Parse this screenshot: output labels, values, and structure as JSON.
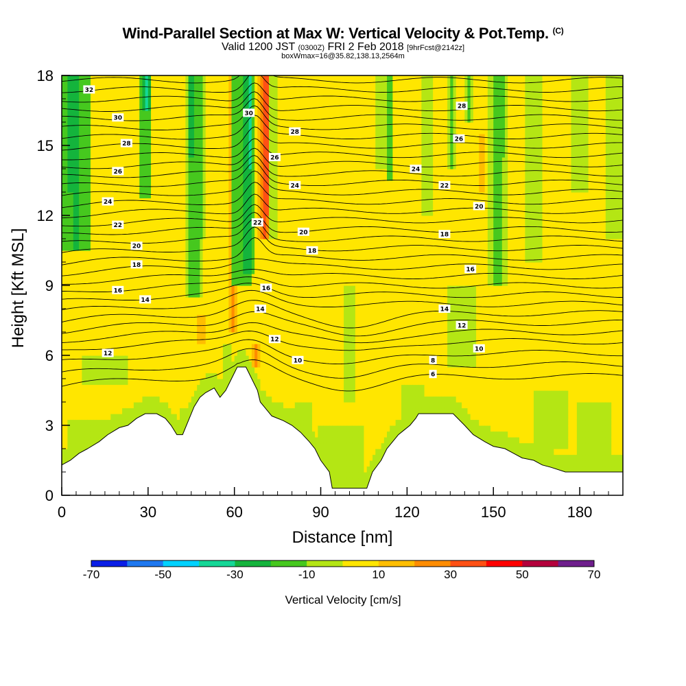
{
  "header": {
    "title": "Wind-Parallel Section at Max W: Vertical Velocity & Pot.Temp.",
    "title_suffix": "(C)",
    "valid_prefix": "Valid 1200 JST",
    "valid_utc": "(0300Z)",
    "valid_date": "FRI 2 Feb 2018",
    "forecast": "[9hrFcst@2142z]",
    "box_info": "boxWmax=16@35.82,138.13,2564m"
  },
  "chart_data": {
    "type": "heatmap",
    "xlabel": "Distance [nm]",
    "ylabel": "Height [Kft MSL]",
    "xlim": [
      0,
      195
    ],
    "ylim": [
      0,
      18
    ],
    "x_ticks": [
      "0",
      "30",
      "60",
      "90",
      "120",
      "150",
      "180"
    ],
    "y_ticks": [
      "0",
      "3",
      "6",
      "9",
      "12",
      "15",
      "18"
    ],
    "colorbar": {
      "label": "Vertical Velocity [cm/s]",
      "tick_labels": [
        "-70",
        "-50",
        "-30",
        "-10",
        "10",
        "30",
        "50",
        "70"
      ],
      "bounds": [
        -70,
        -60,
        -50,
        -40,
        -30,
        -20,
        -10,
        0,
        10,
        20,
        30,
        40,
        50,
        60,
        70
      ],
      "colors": [
        "#0a1ee6",
        "#1e78f0",
        "#00d2ff",
        "#14d796",
        "#14b43c",
        "#46c81e",
        "#b4e614",
        "#ffe600",
        "#ffbe00",
        "#ff8c00",
        "#ff5014",
        "#ff0000",
        "#b4003c",
        "#6e1e8c"
      ]
    },
    "terrain": [
      [
        0,
        1.3
      ],
      [
        3,
        1.5
      ],
      [
        6,
        1.8
      ],
      [
        9,
        2.0
      ],
      [
        13,
        2.3
      ],
      [
        16,
        2.6
      ],
      [
        20,
        2.9
      ],
      [
        23,
        3.0
      ],
      [
        26,
        3.3
      ],
      [
        29,
        3.5
      ],
      [
        33,
        3.5
      ],
      [
        36,
        3.3
      ],
      [
        38,
        3.0
      ],
      [
        40,
        2.6
      ],
      [
        42,
        2.6
      ],
      [
        44,
        3.2
      ],
      [
        46,
        3.8
      ],
      [
        48,
        4.2
      ],
      [
        50,
        4.4
      ],
      [
        53,
        4.6
      ],
      [
        55,
        4.2
      ],
      [
        57,
        4.5
      ],
      [
        59,
        5.0
      ],
      [
        61,
        5.5
      ],
      [
        64,
        5.5
      ],
      [
        66,
        5.0
      ],
      [
        68,
        4.5
      ],
      [
        69,
        4.0
      ],
      [
        71,
        3.7
      ],
      [
        73,
        3.4
      ],
      [
        77,
        3.2
      ],
      [
        80,
        3.0
      ],
      [
        83,
        2.7
      ],
      [
        86,
        2.3
      ],
      [
        88,
        2.0
      ],
      [
        90,
        1.5
      ],
      [
        93,
        1.0
      ],
      [
        94,
        0.3
      ],
      [
        100,
        0.3
      ],
      [
        106,
        0.3
      ],
      [
        108,
        1.0
      ],
      [
        111,
        1.5
      ],
      [
        113,
        2.0
      ],
      [
        115,
        2.3
      ],
      [
        117,
        2.6
      ],
      [
        119,
        2.8
      ],
      [
        121,
        3.0
      ],
      [
        123,
        3.3
      ],
      [
        124,
        3.5
      ],
      [
        136,
        3.5
      ],
      [
        140,
        3.0
      ],
      [
        143,
        2.6
      ],
      [
        147,
        2.3
      ],
      [
        150,
        2.1
      ],
      [
        154,
        2.0
      ],
      [
        157,
        1.8
      ],
      [
        160,
        1.6
      ],
      [
        164,
        1.5
      ],
      [
        167,
        1.3
      ],
      [
        170,
        1.2
      ],
      [
        175,
        1.0
      ],
      [
        180,
        1.0
      ],
      [
        190,
        1.0
      ],
      [
        195,
        1.0
      ]
    ],
    "theta_levels": [
      {
        "label": "6",
        "y": 5.1
      },
      {
        "label": "6",
        "y": 5.6
      },
      {
        "label": "8",
        "y": 6.1
      },
      {
        "label": "10",
        "y": 6.6
      },
      {
        "label": "12",
        "y": 7.0
      },
      {
        "label": "12",
        "y": 7.4
      },
      {
        "label": "14",
        "y": 7.8
      },
      {
        "label": "14",
        "y": 8.2
      },
      {
        "label": "16",
        "y": 8.6
      },
      {
        "label": "16",
        "y": 9.0
      },
      {
        "label": "16",
        "y": 9.4
      },
      {
        "label": "18",
        "y": 9.8
      },
      {
        "label": "18",
        "y": 10.2
      },
      {
        "label": "20",
        "y": 10.6
      },
      {
        "label": "20",
        "y": 11.0
      },
      {
        "label": "22",
        "y": 11.4
      },
      {
        "label": "22",
        "y": 11.8
      },
      {
        "label": "22",
        "y": 12.2
      },
      {
        "label": "24",
        "y": 12.6
      },
      {
        "label": "24",
        "y": 13.0
      },
      {
        "label": "24",
        "y": 13.4
      },
      {
        "label": "26",
        "y": 13.8
      },
      {
        "label": "26",
        "y": 14.2
      },
      {
        "label": "26",
        "y": 14.6
      },
      {
        "label": "26",
        "y": 15.0
      },
      {
        "label": "28",
        "y": 15.4
      },
      {
        "label": "28",
        "y": 15.8
      },
      {
        "label": "30",
        "y": 16.2
      },
      {
        "label": "30",
        "y": 16.6
      },
      {
        "label": "30",
        "y": 17.0
      },
      {
        "label": "32",
        "y": 17.4
      },
      {
        "label": "32",
        "y": 17.8
      }
    ],
    "contour_labels": [
      {
        "text": "32",
        "x": 9.5,
        "y": 17.4
      },
      {
        "text": "30",
        "x": 19.5,
        "y": 16.2
      },
      {
        "text": "28",
        "x": 22.5,
        "y": 15.1
      },
      {
        "text": "26",
        "x": 19.5,
        "y": 13.9
      },
      {
        "text": "24",
        "x": 16,
        "y": 12.6
      },
      {
        "text": "22",
        "x": 19.5,
        "y": 11.6
      },
      {
        "text": "20",
        "x": 26,
        "y": 10.7
      },
      {
        "text": "18",
        "x": 26,
        "y": 9.9
      },
      {
        "text": "16",
        "x": 19.5,
        "y": 8.8
      },
      {
        "text": "14",
        "x": 29,
        "y": 8.4
      },
      {
        "text": "12",
        "x": 16,
        "y": 6.1
      },
      {
        "text": "30",
        "x": 65,
        "y": 16.4
      },
      {
        "text": "28",
        "x": 81,
        "y": 15.6
      },
      {
        "text": "26",
        "x": 74,
        "y": 14.5
      },
      {
        "text": "24",
        "x": 81,
        "y": 13.3
      },
      {
        "text": "22",
        "x": 68,
        "y": 11.7
      },
      {
        "text": "20",
        "x": 84,
        "y": 11.3
      },
      {
        "text": "18",
        "x": 87,
        "y": 10.5
      },
      {
        "text": "16",
        "x": 71,
        "y": 8.9
      },
      {
        "text": "14",
        "x": 69,
        "y": 8.0
      },
      {
        "text": "12",
        "x": 74,
        "y": 6.7
      },
      {
        "text": "10",
        "x": 82,
        "y": 5.8
      },
      {
        "text": "8",
        "x": 129,
        "y": 5.8
      },
      {
        "text": "6",
        "x": 129,
        "y": 5.2
      },
      {
        "text": "28",
        "x": 139,
        "y": 16.7
      },
      {
        "text": "26",
        "x": 138,
        "y": 15.3
      },
      {
        "text": "24",
        "x": 123,
        "y": 14.0
      },
      {
        "text": "22",
        "x": 133,
        "y": 13.3
      },
      {
        "text": "20",
        "x": 145,
        "y": 12.4
      },
      {
        "text": "18",
        "x": 133,
        "y": 11.2
      },
      {
        "text": "16",
        "x": 142,
        "y": 9.7
      },
      {
        "text": "14",
        "x": 133,
        "y": 8.0
      },
      {
        "text": "12",
        "x": 139,
        "y": 7.3
      },
      {
        "text": "10",
        "x": 145,
        "y": 6.3
      }
    ],
    "w_features": [
      {
        "x": 5,
        "y0": 10.5,
        "y1": 18,
        "hw": 5,
        "w": -22
      },
      {
        "x": 4,
        "y0": 13,
        "y1": 18,
        "hw": 2.5,
        "w": -32
      },
      {
        "x": 29,
        "y0": 12.8,
        "y1": 18,
        "hw": 2.5,
        "w": -20
      },
      {
        "x": 29.5,
        "y0": 16.5,
        "y1": 18,
        "hw": 1.2,
        "w": -38
      },
      {
        "x": 46,
        "y0": 8.5,
        "y1": 18,
        "hw": 3,
        "w": -15
      },
      {
        "x": 45,
        "y0": 14.5,
        "y1": 18,
        "hw": 1.5,
        "w": -28
      },
      {
        "x": 48.5,
        "y0": 11.0,
        "y1": 18,
        "hw": 1.8,
        "w": -12
      },
      {
        "x": 39.5,
        "y0": 12,
        "y1": 18,
        "hw": 1.5,
        "w": 8
      },
      {
        "x": 59.5,
        "y0": 7,
        "y1": 18,
        "hw": 1.5,
        "w": 20
      },
      {
        "x": 62.5,
        "y0": 9,
        "y1": 18,
        "hw": 4,
        "w": -18
      },
      {
        "x": 64.5,
        "y0": 9.5,
        "y1": 18,
        "hw": 3,
        "w": -28
      },
      {
        "x": 65.5,
        "y0": 14,
        "y1": 18,
        "hw": 1,
        "w": -38
      },
      {
        "x": 70.5,
        "y0": 11,
        "y1": 18,
        "hw": 2.5,
        "w": 30
      },
      {
        "x": 70.8,
        "y0": 12,
        "y1": 18,
        "hw": 1.3,
        "w": 45
      },
      {
        "x": 67.5,
        "y0": 5.6,
        "y1": 6.4,
        "hw": 2,
        "w": 22
      },
      {
        "x": 73.5,
        "y0": 11,
        "y1": 18,
        "hw": 2,
        "w": -8
      },
      {
        "x": 57.5,
        "y0": 5,
        "y1": 6.5,
        "hw": 2,
        "w": -8
      },
      {
        "x": 48.5,
        "y0": 6.5,
        "y1": 7.8,
        "hw": 1.5,
        "w": 18
      },
      {
        "x": 47,
        "y0": 3.5,
        "y1": 4.2,
        "hw": 2,
        "w": -10
      },
      {
        "x": 43,
        "y0": 3.0,
        "y1": 3.8,
        "hw": 2,
        "w": -10
      },
      {
        "x": 84,
        "y0": 3.0,
        "y1": 4.0,
        "hw": 3,
        "w": -6
      },
      {
        "x": 97,
        "y0": 0.3,
        "y1": 3.0,
        "hw": 8,
        "w": -5
      },
      {
        "x": 100,
        "y0": 4.0,
        "y1": 9.0,
        "hw": 2,
        "w": -5
      },
      {
        "x": 122,
        "y0": 3.5,
        "y1": 4.8,
        "hw": 4,
        "w": -6
      },
      {
        "x": 112,
        "y0": 14,
        "y1": 18,
        "hw": 3,
        "w": -8
      },
      {
        "x": 114,
        "y0": 13.5,
        "y1": 18,
        "hw": 1.5,
        "w": -15
      },
      {
        "x": 127,
        "y0": 12,
        "y1": 18,
        "hw": 2,
        "w": -10
      },
      {
        "x": 135.5,
        "y0": 14,
        "y1": 18,
        "hw": 1.8,
        "w": -12
      },
      {
        "x": 141.5,
        "y0": 16,
        "y1": 18,
        "hw": 1.8,
        "w": -12
      },
      {
        "x": 146,
        "y0": 13,
        "y1": 15.5,
        "hw": 1,
        "w": 18
      },
      {
        "x": 151.5,
        "y0": 9,
        "y1": 18,
        "hw": 4,
        "w": -12
      },
      {
        "x": 152,
        "y0": 14.5,
        "y1": 18,
        "hw": 2,
        "w": -20
      },
      {
        "x": 139,
        "y0": 5.5,
        "y1": 9,
        "hw": 5,
        "w": -6
      },
      {
        "x": 164,
        "y0": 10,
        "y1": 18,
        "hw": 3,
        "w": -10
      },
      {
        "x": 180,
        "y0": 13,
        "y1": 18,
        "hw": 3,
        "w": -8
      },
      {
        "x": 192,
        "y0": 11,
        "y1": 18,
        "hw": 3,
        "w": -8
      },
      {
        "x": 170,
        "y0": 2.0,
        "y1": 4.5,
        "hw": 6,
        "w": -6
      },
      {
        "x": 185,
        "y0": 1.2,
        "y1": 4.0,
        "hw": 6,
        "w": -6
      },
      {
        "x": 10,
        "y0": 1.5,
        "y1": 3.3,
        "hw": 8,
        "w": -6
      },
      {
        "x": 15,
        "y0": 4.8,
        "y1": 6.0,
        "hw": 8,
        "w": -6
      }
    ],
    "grid": false,
    "legend": "bottom"
  }
}
